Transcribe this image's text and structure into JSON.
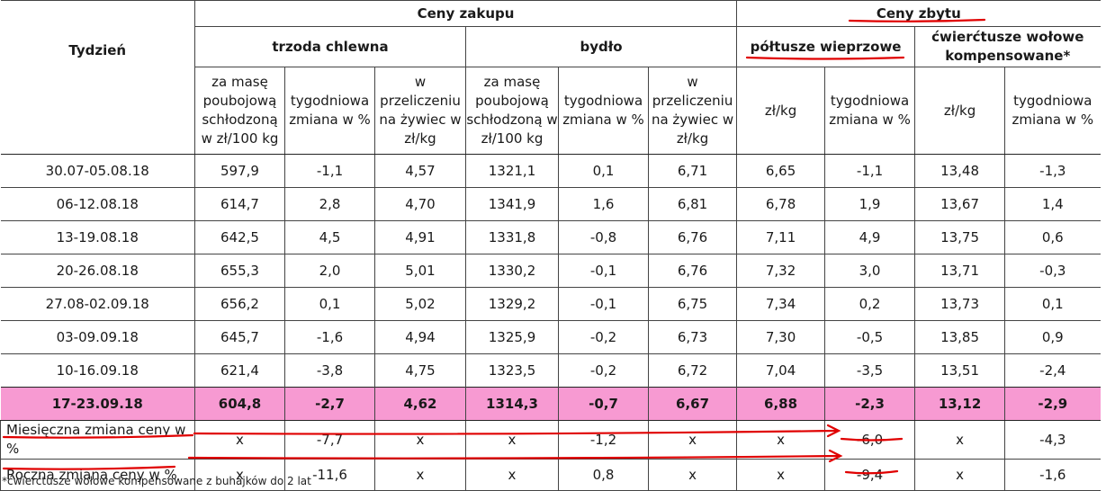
{
  "headers": {
    "week": "Tydzień",
    "purchase": "Ceny zakupu",
    "sales": "Ceny zbytu",
    "pigs": "trzoda chlewna",
    "cattle": "bydło",
    "pork_halves": "półtusze wieprzowe",
    "beef_quarters": "ćwierćtusze wołowe kompensowane*",
    "col_mass": "za masę poubojową schłodzoną w zł/100 kg",
    "col_weekly": "tygodniowa zmiana w %",
    "col_live": "w przeliczeniu na żywiec w zł/kg",
    "col_zlkg": "zł/kg"
  },
  "rows": [
    {
      "week": "30.07-05.08.18",
      "v": [
        "597,9",
        "-1,1",
        "4,57",
        "1321,1",
        "0,1",
        "6,71",
        "6,65",
        "-1,1",
        "13,48",
        "-1,3"
      ]
    },
    {
      "week": "06-12.08.18",
      "v": [
        "614,7",
        "2,8",
        "4,70",
        "1341,9",
        "1,6",
        "6,81",
        "6,78",
        "1,9",
        "13,67",
        "1,4"
      ]
    },
    {
      "week": "13-19.08.18",
      "v": [
        "642,5",
        "4,5",
        "4,91",
        "1331,8",
        "-0,8",
        "6,76",
        "7,11",
        "4,9",
        "13,75",
        "0,6"
      ]
    },
    {
      "week": "20-26.08.18",
      "v": [
        "655,3",
        "2,0",
        "5,01",
        "1330,2",
        "-0,1",
        "6,76",
        "7,32",
        "3,0",
        "13,71",
        "-0,3"
      ]
    },
    {
      "week": "27.08-02.09.18",
      "v": [
        "656,2",
        "0,1",
        "5,02",
        "1329,2",
        "-0,1",
        "6,75",
        "7,34",
        "0,2",
        "13,73",
        "0,1"
      ]
    },
    {
      "week": "03-09.09.18",
      "v": [
        "645,7",
        "-1,6",
        "4,94",
        "1325,9",
        "-0,2",
        "6,73",
        "7,30",
        "-0,5",
        "13,85",
        "0,9"
      ]
    },
    {
      "week": "10-16.09.18",
      "v": [
        "621,4",
        "-3,8",
        "4,75",
        "1323,5",
        "-0,2",
        "6,72",
        "7,04",
        "-3,5",
        "13,51",
        "-2,4"
      ]
    }
  ],
  "highlight": {
    "week": "17-23.09.18",
    "v": [
      "604,8",
      "-2,7",
      "4,62",
      "1314,3",
      "-0,7",
      "6,67",
      "6,88",
      "-2,3",
      "13,12",
      "-2,9"
    ]
  },
  "monthly": {
    "label": "Miesięczna zmiana ceny w %",
    "v": [
      "x",
      "-7,7",
      "x",
      "x",
      "-1,2",
      "x",
      "x",
      "-6,0",
      "x",
      "-4,3"
    ]
  },
  "yearly": {
    "label": "Roczna zmiana ceny w %",
    "v": [
      "x",
      "-11,6",
      "x",
      "x",
      "0,8",
      "x",
      "x",
      "-9,4",
      "x",
      "-1,6"
    ]
  },
  "footnote": "*ćwierćtusze wołowe kompensowane z buhajków do 2 lat",
  "colors": {
    "highlight": "#f79ad2",
    "annotation": "#e00000"
  }
}
